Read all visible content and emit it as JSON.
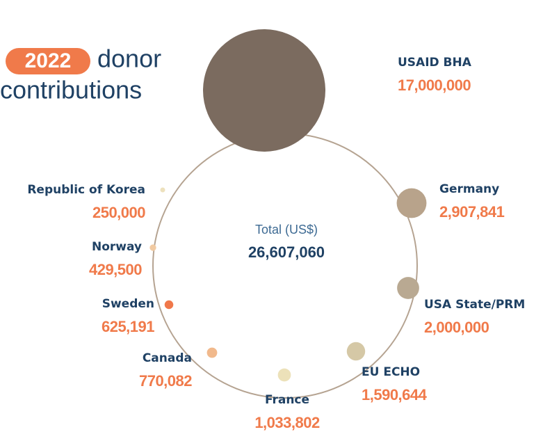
{
  "chart_data": {
    "type": "bubble",
    "title_year": "2022",
    "title_line1": "donor",
    "title_line2": "contributions",
    "total_label": "Total (US$)",
    "total": {
      "value": 26607060,
      "label": "26,607,060"
    },
    "categories": [
      "USAID BHA",
      "Germany",
      "USA State/PRM",
      "EU ECHO",
      "France",
      "Canada",
      "Sweden",
      "Norway",
      "Republic of Korea"
    ],
    "values": [
      17000000,
      2907841,
      2000000,
      1590644,
      1033802,
      770082,
      625191,
      429500,
      250000
    ],
    "value_labels": [
      "17,000,000",
      "2,907,841",
      "2,000,000",
      "1,590,644",
      "1,033,802",
      "770,082",
      "625,191",
      "429,500",
      "250,000"
    ],
    "colors": [
      "#7b6b5f",
      "#b8a38b",
      "#b9a992",
      "#d5c8a6",
      "#ece1b9",
      "#f1b98c",
      "#f0784a",
      "#f1caa2",
      "#ede1bd"
    ]
  }
}
